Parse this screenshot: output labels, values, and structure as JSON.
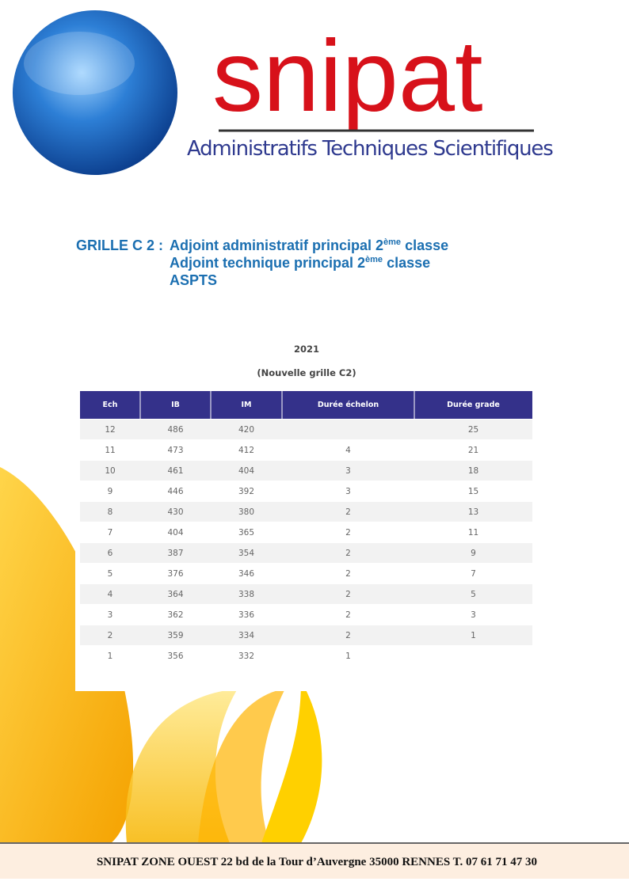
{
  "header": {
    "brand": "snipat",
    "tagline": "Administratifs Techniques Scientifiques"
  },
  "title": {
    "prefix": "GRILLE C 2 :",
    "lines": [
      {
        "text": "Adjoint administratif principal 2",
        "sup": "ème",
        "suffix": " classe"
      },
      {
        "text": "Adjoint technique principal 2",
        "sup": "ème",
        "suffix": " classe"
      },
      {
        "text": "ASPTS",
        "sup": null,
        "suffix": null
      }
    ]
  },
  "table": {
    "year": "2021",
    "caption": "(Nouvelle grille C2)",
    "columns": [
      "Ech",
      "IB",
      "IM",
      "Durée échelon",
      "Durée grade"
    ],
    "rows": [
      [
        "12",
        "486",
        "420",
        null,
        "25"
      ],
      [
        "11",
        "473",
        "412",
        "4",
        "21"
      ],
      [
        "10",
        "461",
        "404",
        "3",
        "18"
      ],
      [
        "9",
        "446",
        "392",
        "3",
        "15"
      ],
      [
        "8",
        "430",
        "380",
        "2",
        "13"
      ],
      [
        "7",
        "404",
        "365",
        "2",
        "11"
      ],
      [
        "6",
        "387",
        "354",
        "2",
        "9"
      ],
      [
        "5",
        "376",
        "346",
        "2",
        "7"
      ],
      [
        "4",
        "364",
        "338",
        "2",
        "5"
      ],
      [
        "3",
        "362",
        "336",
        "2",
        "3"
      ],
      [
        "2",
        "359",
        "334",
        "2",
        "1"
      ],
      [
        "1",
        "356",
        "332",
        "1",
        null
      ]
    ]
  },
  "footer": "SNIPAT ZONE OUEST  22 bd de la Tour d’Auvergne  35000 RENNES   T. 07 61 71 47 30"
}
